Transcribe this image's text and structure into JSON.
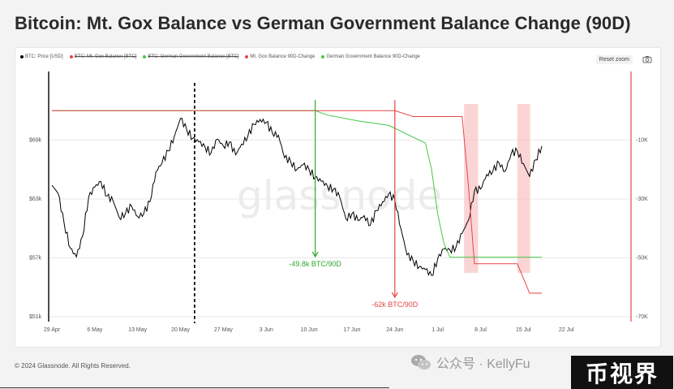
{
  "title": "Bitcoin: Mt. Gox Balance vs German Government Balance Change (90D)",
  "legend": [
    {
      "label": "BTC: Price [USD]",
      "color": "#000000",
      "struck": false
    },
    {
      "label": "BTC: Mt. Gox Balance [BTC]",
      "color": "#e64545",
      "struck": true
    },
    {
      "label": "BTC: German Government Balance [BTC]",
      "color": "#45c845",
      "struck": true
    },
    {
      "label": "Mt. Gox Balance 90D-Change",
      "color": "#e64545",
      "struck": false
    },
    {
      "label": "German Government Balance 90D-Change",
      "color": "#45c845",
      "struck": false
    }
  ],
  "controls": {
    "reset_zoom": "Reset zoom",
    "camera_icon": "camera-icon"
  },
  "watermark": "glassnode",
  "footer": {
    "copyright": "© 2024 Glassnode. All Rights Reserved."
  },
  "overlay": {
    "wechat_icon": "wechat-icon",
    "wechat_text": "公众号 · KellyFu",
    "site_logo": "币视界"
  },
  "chart_data": {
    "type": "line",
    "x_ticks": [
      "29 Apr",
      "6 May",
      "13 May",
      "20 May",
      "27 May",
      "3 Jun",
      "10 Jun",
      "17 Jun",
      "24 Jun",
      "1 Jul",
      "8 Jul",
      "15 Jul",
      "22 Jul"
    ],
    "y_left_ticks": [
      "$51k",
      "$57k",
      "$63k",
      "$69k"
    ],
    "y_left_range": [
      51000,
      75000
    ],
    "y_right_ticks": [
      "-10K",
      "-30K",
      "-50K",
      "-70K"
    ],
    "y_right_range": [
      -70000,
      10000
    ],
    "annotations": [
      {
        "text": "-49.8k BTC/90D",
        "color": "#2ea82e"
      },
      {
        "text": "-62k BTC/90D",
        "color": "#e64545"
      }
    ],
    "series": [
      {
        "name": "BTC: Price [USD]",
        "axis": "left",
        "color": "#000000",
        "points": [
          [
            0,
            64400
          ],
          [
            1,
            63600
          ],
          [
            2,
            60500
          ],
          [
            3,
            58000
          ],
          [
            4,
            57100
          ],
          [
            5,
            59200
          ],
          [
            6,
            63200
          ],
          [
            7,
            64200
          ],
          [
            8,
            64800
          ],
          [
            9,
            63300
          ],
          [
            10,
            62800
          ],
          [
            11,
            61100
          ],
          [
            12,
            61500
          ],
          [
            13,
            62300
          ],
          [
            14,
            61200
          ],
          [
            15,
            61500
          ],
          [
            16,
            62700
          ],
          [
            17,
            65800
          ],
          [
            18,
            66700
          ],
          [
            19,
            67900
          ],
          [
            20,
            69400
          ],
          [
            21,
            71200
          ],
          [
            22,
            70100
          ],
          [
            23,
            69200
          ],
          [
            24,
            68800
          ],
          [
            25,
            68300
          ],
          [
            26,
            67700
          ],
          [
            27,
            69100
          ],
          [
            28,
            68400
          ],
          [
            29,
            68800
          ],
          [
            30,
            67500
          ],
          [
            31,
            68600
          ],
          [
            32,
            69400
          ],
          [
            33,
            70600
          ],
          [
            34,
            71100
          ],
          [
            35,
            70800
          ],
          [
            36,
            69700
          ],
          [
            37,
            69500
          ],
          [
            38,
            67200
          ],
          [
            39,
            66800
          ],
          [
            40,
            66000
          ],
          [
            41,
            66500
          ],
          [
            42,
            66000
          ],
          [
            43,
            65200
          ],
          [
            44,
            64800
          ],
          [
            45,
            64300
          ],
          [
            46,
            64000
          ],
          [
            47,
            63200
          ],
          [
            48,
            61000
          ],
          [
            49,
            61500
          ],
          [
            50,
            60800
          ],
          [
            51,
            61300
          ],
          [
            52,
            60300
          ],
          [
            53,
            61800
          ],
          [
            54,
            62700
          ],
          [
            55,
            63500
          ],
          [
            56,
            62900
          ],
          [
            57,
            60000
          ],
          [
            58,
            57300
          ],
          [
            59,
            56700
          ],
          [
            60,
            56100
          ],
          [
            61,
            55800
          ],
          [
            62,
            55200
          ],
          [
            63,
            56900
          ],
          [
            64,
            57900
          ],
          [
            65,
            57800
          ],
          [
            66,
            58100
          ],
          [
            67,
            59500
          ],
          [
            68,
            60800
          ],
          [
            69,
            63800
          ],
          [
            70,
            64000
          ],
          [
            71,
            65500
          ],
          [
            72,
            65800
          ],
          [
            73,
            66700
          ],
          [
            74,
            65800
          ],
          [
            75,
            67600
          ],
          [
            76,
            67900
          ],
          [
            77,
            66600
          ],
          [
            78,
            65300
          ],
          [
            79,
            67000
          ],
          [
            80,
            68400
          ]
        ]
      },
      {
        "name": "German Government Balance 90D-Change",
        "axis": "right",
        "color": "#45c845",
        "points": [
          [
            0,
            0
          ],
          [
            43,
            0
          ],
          [
            45,
            -1500
          ],
          [
            50,
            -3500
          ],
          [
            55,
            -5000
          ],
          [
            59,
            -9000
          ],
          [
            61,
            -11000
          ],
          [
            62,
            -20000
          ],
          [
            63,
            -35000
          ],
          [
            64,
            -45000
          ],
          [
            65,
            -49800
          ],
          [
            80,
            -49800
          ]
        ]
      },
      {
        "name": "Mt. Gox Balance 90D-Change",
        "axis": "right",
        "color": "#e64545",
        "points": [
          [
            0,
            0
          ],
          [
            43,
            0
          ],
          [
            56,
            0
          ],
          [
            59,
            -2000
          ],
          [
            67,
            -2000
          ],
          [
            68,
            -25000
          ],
          [
            69,
            -52000
          ],
          [
            76,
            -52000
          ],
          [
            77,
            -57000
          ],
          [
            78,
            -62000
          ],
          [
            80,
            -62000
          ]
        ]
      }
    ]
  }
}
